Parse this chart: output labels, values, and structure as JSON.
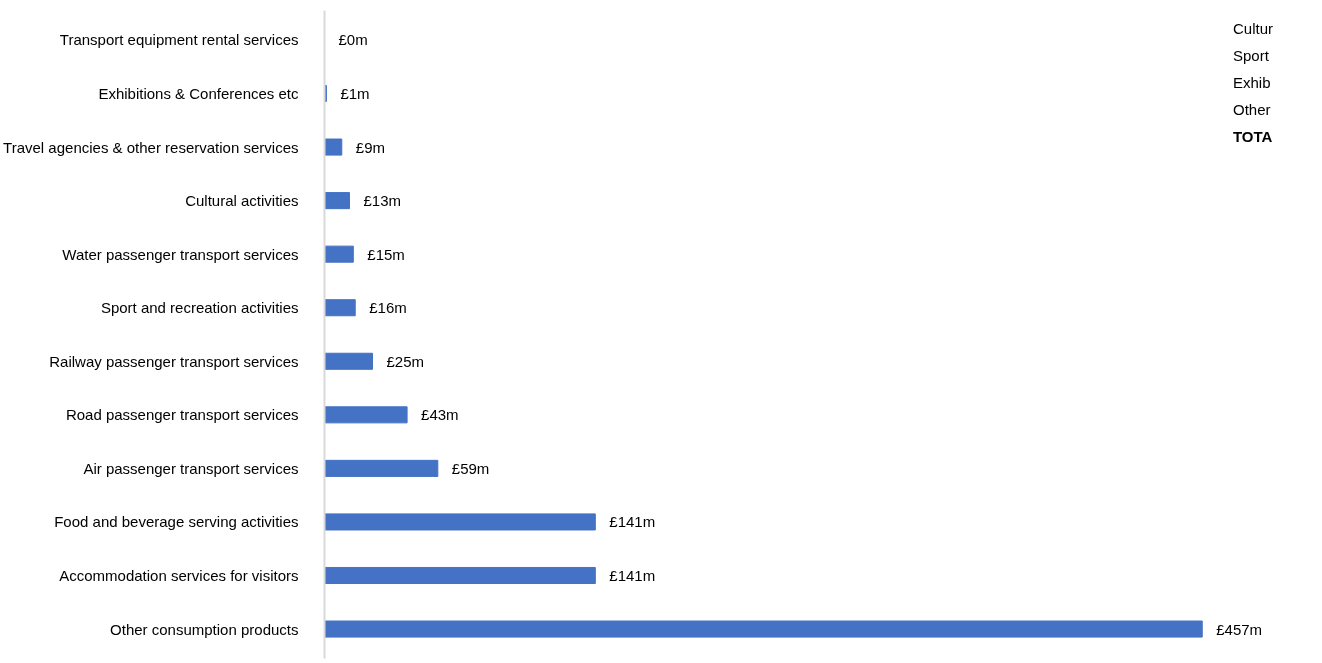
{
  "chart_data": {
    "type": "bar",
    "orientation": "horizontal",
    "categories": [
      "Transport equipment rental services",
      "Exhibitions & Conferences etc",
      "Travel agencies & other reservation services",
      "Cultural activities",
      "Water passenger transport services",
      "Sport and recreation activities",
      "Railway passenger transport services",
      "Road passenger transport services",
      "Air passenger transport services",
      "Food and beverage serving activities",
      "Accommodation services for visitors",
      "Other consumption products"
    ],
    "values": [
      0,
      1,
      9,
      13,
      15,
      16,
      25,
      43,
      59,
      141,
      141,
      457
    ],
    "value_labels": [
      "£0m",
      "£1m",
      "£9m",
      "£13m",
      "£15m",
      "£16m",
      "£25m",
      "£43m",
      "£59m",
      "£141m",
      "£141m",
      "£457m"
    ],
    "color": "#4472c4",
    "annotations": [
      "Cultur",
      "Sport",
      "Exhib",
      "Other",
      "TOTA"
    ],
    "grid": false
  }
}
